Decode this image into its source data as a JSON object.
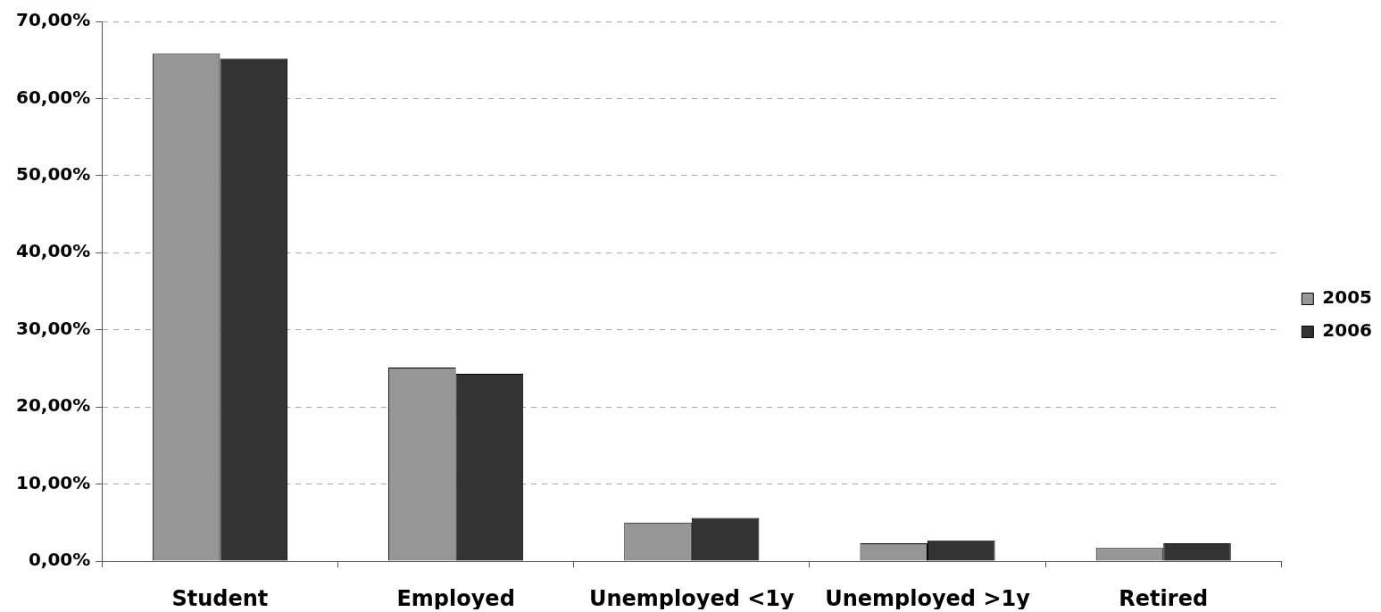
{
  "chart_data": {
    "type": "bar",
    "categories": [
      "Student",
      "Employed",
      "Unemployed <1y",
      "Unemployed >1y",
      "Retired"
    ],
    "series": [
      {
        "name": "2005",
        "color": "#969696",
        "values": [
          65.8,
          25.1,
          5.0,
          2.3,
          1.7
        ]
      },
      {
        "name": "2006",
        "color": "#333333",
        "values": [
          65.2,
          24.3,
          5.6,
          2.7,
          2.3
        ]
      }
    ],
    "ylim": [
      0,
      70
    ],
    "yticks": [
      {
        "value": 0,
        "label": "0,00%"
      },
      {
        "value": 10,
        "label": "10,00%"
      },
      {
        "value": 20,
        "label": "20,00%"
      },
      {
        "value": 30,
        "label": "30,00%"
      },
      {
        "value": 40,
        "label": "40,00%"
      },
      {
        "value": 50,
        "label": "50,00%"
      },
      {
        "value": 60,
        "label": "60,00%"
      },
      {
        "value": 70,
        "label": "70,00%"
      }
    ],
    "grid": "y",
    "legend": "right"
  }
}
